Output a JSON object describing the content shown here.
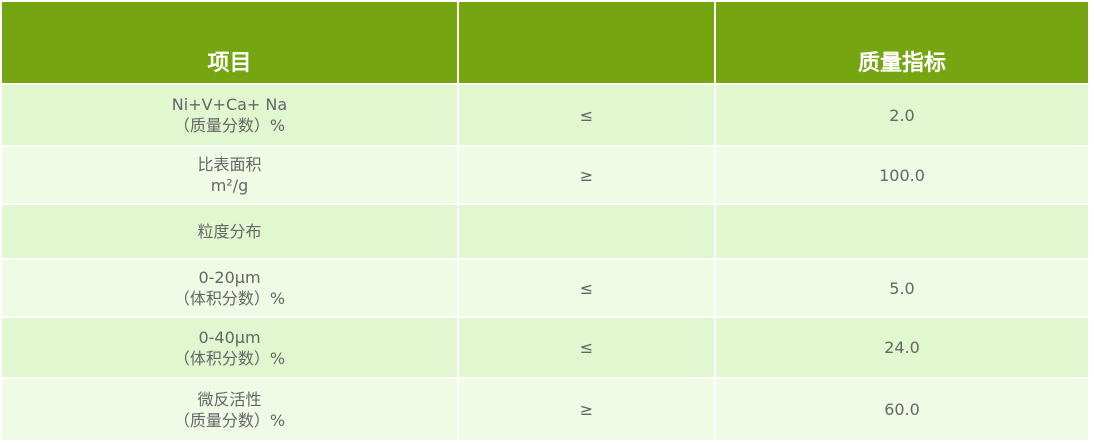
{
  "header": {
    "item": "项目",
    "relation": "",
    "value": "质量指标"
  },
  "colors": {
    "header_bg": "#76a512",
    "row_dark": "#e1f7d0",
    "row_light": "#f0fbe6"
  },
  "rows": [
    {
      "line1": "Ni+V+Ca+ Na",
      "line2": "（质量分数）%",
      "relation": "≤",
      "value": "2.0"
    },
    {
      "line1": "比表面积",
      "line2": "m²/g",
      "relation": "≥",
      "value": "100.0"
    },
    {
      "line1": "粒度分布",
      "line2": "",
      "relation": "",
      "value": ""
    },
    {
      "line1": "0-20μm",
      "line2": "（体积分数）%",
      "relation": "≤",
      "value": "5.0"
    },
    {
      "line1": "0-40μm",
      "line2": "（体积分数）%",
      "relation": "≤",
      "value": "24.0"
    },
    {
      "line1": "微反活性",
      "line2": "（质量分数）%",
      "relation": "≥",
      "value": "60.0"
    }
  ]
}
